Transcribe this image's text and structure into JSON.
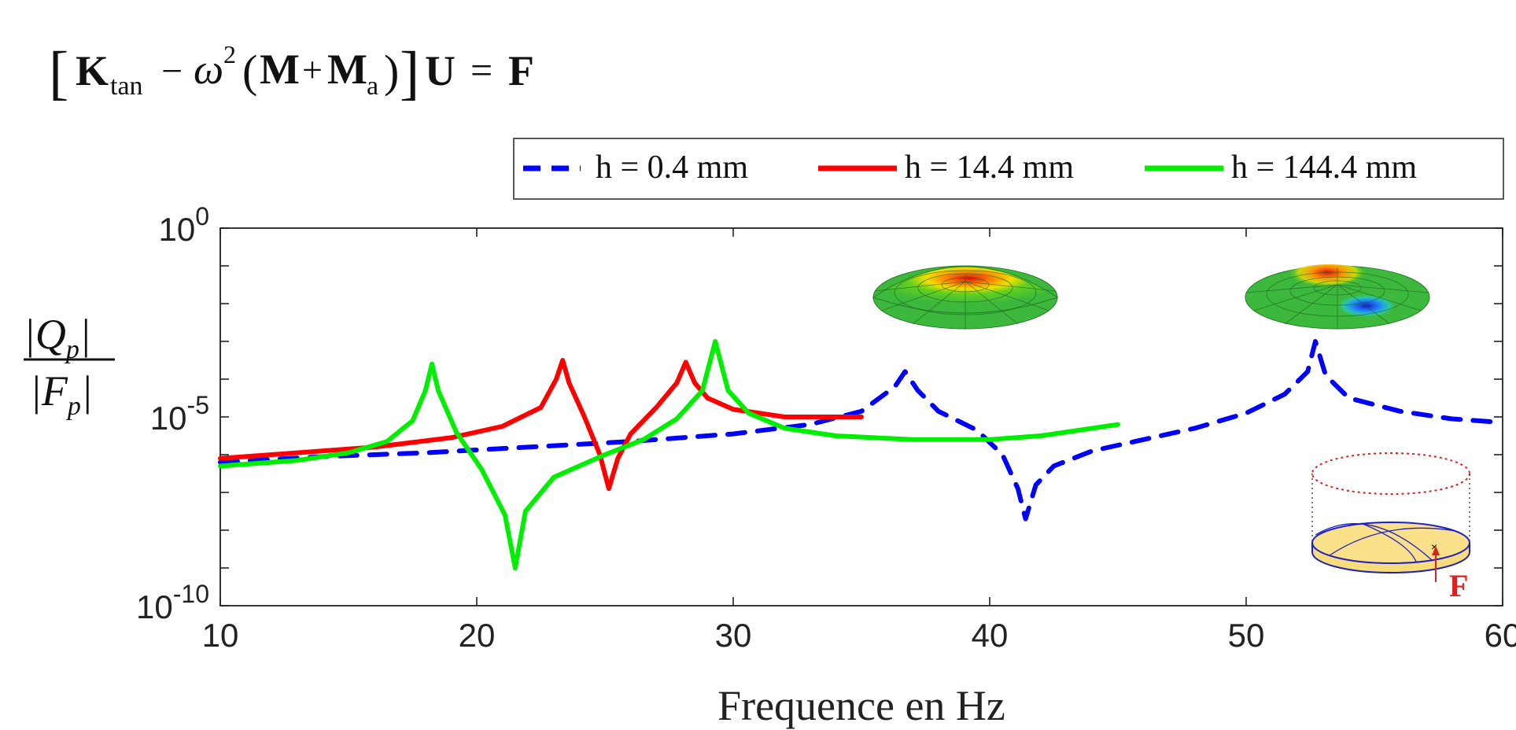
{
  "equation": {
    "lbracket": "[",
    "k": "K",
    "k_sub": "tan",
    "minus": "−",
    "omega": "ω",
    "omega_sup": "2",
    "lparen": "(",
    "m": "M",
    "plus": "+",
    "ma": "M",
    "ma_sub": "a",
    "rparen": ")",
    "rbracket": "]",
    "u": "U",
    "equals": "=",
    "f": "F"
  },
  "ylabel": {
    "numerator": "|Q",
    "numerator_sub": "p",
    "numerator_close": "|",
    "denominator": "|F",
    "denominator_sub": "p",
    "denominator_close": "|"
  },
  "force_label": "F",
  "chart_data": {
    "type": "line",
    "xlabel": "Frequence en Hz",
    "xlim": [
      10,
      60
    ],
    "ylim_exponent": [
      -10,
      0
    ],
    "yscale": "log",
    "grid": false,
    "legend_position": "top-right, outside axes",
    "x_ticks": [
      "10",
      "20",
      "30",
      "40",
      "50",
      "60"
    ],
    "y_ticks": [
      {
        "base": "10",
        "exp": "0",
        "value_exp": 0
      },
      {
        "base": "10",
        "exp": "-5",
        "value_exp": -5
      },
      {
        "base": "10",
        "exp": "-10",
        "value_exp": -10
      }
    ],
    "series": [
      {
        "name": "h = 0.4 mm",
        "color": "#0000ff",
        "dash": true,
        "points_log10": [
          [
            10,
            -6.2
          ],
          [
            14,
            -6.05
          ],
          [
            18,
            -5.95
          ],
          [
            22,
            -5.8
          ],
          [
            26,
            -5.65
          ],
          [
            30,
            -5.45
          ],
          [
            33,
            -5.2
          ],
          [
            35,
            -4.85
          ],
          [
            36.3,
            -4.2
          ],
          [
            36.7,
            -3.8
          ],
          [
            37.2,
            -4.3
          ],
          [
            38,
            -4.85
          ],
          [
            39.5,
            -5.35
          ],
          [
            40.5,
            -6.0
          ],
          [
            41.1,
            -6.9
          ],
          [
            41.4,
            -7.7
          ],
          [
            41.8,
            -6.8
          ],
          [
            42.5,
            -6.3
          ],
          [
            44,
            -5.9
          ],
          [
            46,
            -5.6
          ],
          [
            48,
            -5.3
          ],
          [
            50,
            -4.9
          ],
          [
            51.5,
            -4.4
          ],
          [
            52.4,
            -3.8
          ],
          [
            52.7,
            -3.0
          ],
          [
            53.1,
            -3.9
          ],
          [
            54,
            -4.5
          ],
          [
            56,
            -4.85
          ],
          [
            58,
            -5.05
          ],
          [
            60,
            -5.15
          ]
        ]
      },
      {
        "name": "h = 14.4 mm",
        "color": "#ff0000",
        "dash": false,
        "points_log10": [
          [
            10,
            -6.1
          ],
          [
            13,
            -5.95
          ],
          [
            16,
            -5.8
          ],
          [
            19,
            -5.55
          ],
          [
            21,
            -5.25
          ],
          [
            22.5,
            -4.75
          ],
          [
            23.1,
            -4.0
          ],
          [
            23.35,
            -3.5
          ],
          [
            23.6,
            -4.1
          ],
          [
            24.2,
            -5.0
          ],
          [
            24.8,
            -6.0
          ],
          [
            25.15,
            -6.9
          ],
          [
            25.5,
            -6.1
          ],
          [
            26,
            -5.45
          ],
          [
            27,
            -4.75
          ],
          [
            27.8,
            -4.1
          ],
          [
            28.15,
            -3.55
          ],
          [
            28.5,
            -4.1
          ],
          [
            29,
            -4.5
          ],
          [
            30,
            -4.8
          ],
          [
            32,
            -5.0
          ],
          [
            35,
            -5.0
          ]
        ]
      },
      {
        "name": "h = 144.4 mm",
        "color": "#00ee00",
        "dash": false,
        "points_log10": [
          [
            10,
            -6.3
          ],
          [
            13,
            -6.15
          ],
          [
            15,
            -5.95
          ],
          [
            16.5,
            -5.65
          ],
          [
            17.5,
            -5.1
          ],
          [
            18,
            -4.3
          ],
          [
            18.25,
            -3.6
          ],
          [
            18.5,
            -4.3
          ],
          [
            19.2,
            -5.4
          ],
          [
            20.2,
            -6.4
          ],
          [
            21.1,
            -7.6
          ],
          [
            21.5,
            -9.0
          ],
          [
            21.9,
            -7.5
          ],
          [
            23,
            -6.6
          ],
          [
            25,
            -6.0
          ],
          [
            26.5,
            -5.6
          ],
          [
            27.8,
            -5.05
          ],
          [
            28.8,
            -4.3
          ],
          [
            29.3,
            -3.0
          ],
          [
            29.8,
            -4.3
          ],
          [
            30.6,
            -4.9
          ],
          [
            32,
            -5.3
          ],
          [
            34,
            -5.5
          ],
          [
            37,
            -5.6
          ],
          [
            40,
            -5.6
          ],
          [
            42,
            -5.5
          ],
          [
            45,
            -5.2
          ]
        ]
      }
    ]
  }
}
